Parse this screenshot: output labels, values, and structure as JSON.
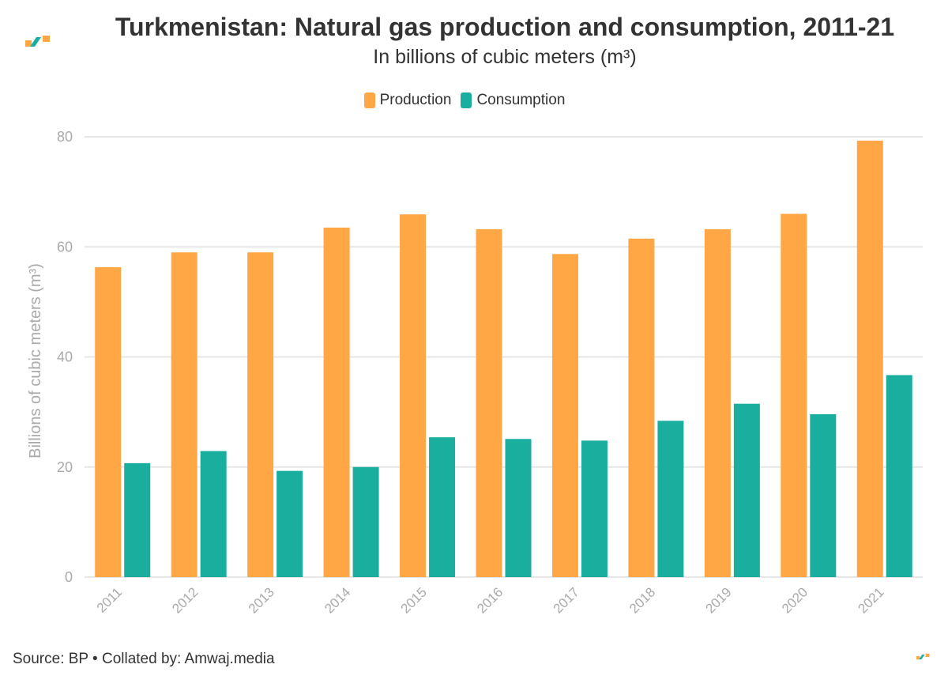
{
  "title": "Turkmenistan: Natural gas production and consumption, 2011-21",
  "subtitle": "In billions of cubic meters (m³)",
  "footer": "Source: BP • Collated by: Amwaj.media",
  "colors": {
    "production": "#FFA745",
    "consumption": "#1AAE9F",
    "axis_text": "#aaaaaa",
    "grid": "#e6e6e6"
  },
  "chart_data": {
    "type": "bar",
    "categories": [
      "2011",
      "2012",
      "2013",
      "2014",
      "2015",
      "2016",
      "2017",
      "2018",
      "2019",
      "2020",
      "2021"
    ],
    "series": [
      {
        "name": "Production",
        "values": [
          56.3,
          59.0,
          59.0,
          63.5,
          65.9,
          63.2,
          58.7,
          61.5,
          63.2,
          66.0,
          79.3
        ]
      },
      {
        "name": "Consumption",
        "values": [
          20.7,
          22.9,
          19.3,
          20.0,
          25.4,
          25.1,
          24.8,
          28.4,
          31.5,
          29.6,
          36.7
        ]
      }
    ],
    "ylabel": "Billions of cubic meters (m³)",
    "xlabel": "",
    "ylim": [
      0,
      80
    ],
    "yticks": [
      0,
      20,
      40,
      60,
      80
    ],
    "grid": true,
    "legend": "top-center"
  }
}
